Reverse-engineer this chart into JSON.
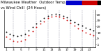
{
  "title": "Milwaukee Weather  Outdoor Temp.",
  "subtitle": "vs Wind Chill  (24 Hours)",
  "hours": [
    1,
    2,
    3,
    4,
    5,
    6,
    7,
    8,
    9,
    10,
    11,
    12,
    13,
    14,
    15,
    16,
    17,
    18,
    19,
    20,
    21,
    22,
    23,
    24
  ],
  "outdoor_temp": [
    20,
    17,
    14,
    13,
    14,
    17,
    22,
    28,
    34,
    39,
    43,
    47,
    49,
    50,
    49,
    47,
    44,
    40,
    36,
    33,
    30,
    27,
    25,
    23
  ],
  "wind_chill": [
    12,
    9,
    5,
    4,
    5,
    8,
    14,
    21,
    28,
    34,
    38,
    43,
    45,
    47,
    46,
    43,
    40,
    35,
    30,
    26,
    22,
    19,
    17,
    15
  ],
  "outdoor_color": "#000000",
  "windchill_color": "#cc0000",
  "legend_outdoor_color": "#0000cc",
  "legend_windchill_color": "#cc0000",
  "legend_end_color": "#000000",
  "background_color": "#ffffff",
  "grid_color": "#9999aa",
  "ylim": [
    -5,
    57
  ],
  "ytick_values": [
    -1,
    9,
    19,
    29,
    39,
    49
  ],
  "ytick_labels": [
    "-1",
    "9",
    "19",
    "29",
    "39",
    "49"
  ],
  "xtick_hours": [
    1,
    3,
    5,
    7,
    9,
    11,
    13,
    15,
    17,
    19,
    21,
    23
  ],
  "xtick_labels": [
    "1",
    "3",
    "5",
    "7",
    "9",
    "11",
    "13",
    "15",
    "17",
    "19",
    "21",
    "23"
  ],
  "title_fontsize": 3.8,
  "tick_fontsize": 3.2,
  "dot_size": 1.8
}
